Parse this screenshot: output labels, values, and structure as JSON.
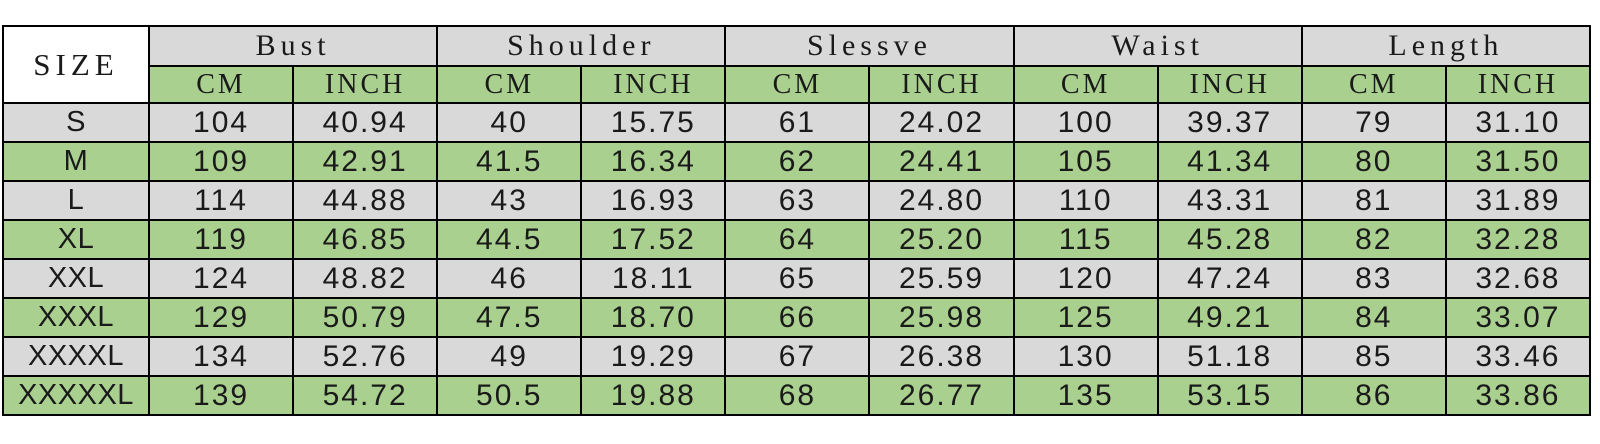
{
  "colors": {
    "header_gray": "#d9d9d9",
    "row_gray": "#d9d9d9",
    "row_green": "#a9d08e",
    "size_cell_bg": "#ffffff",
    "border": "#000000"
  },
  "table": {
    "size_label": "SIZE",
    "groups": [
      "Bust",
      "Shoulder",
      "Slessve",
      "Waist",
      "Length"
    ],
    "unit_labels": [
      "CM",
      "INCH"
    ],
    "rows": [
      {
        "size": "S",
        "values": [
          "104",
          "40.94",
          "40",
          "15.75",
          "61",
          "24.02",
          "100",
          "39.37",
          "79",
          "31.10"
        ]
      },
      {
        "size": "M",
        "values": [
          "109",
          "42.91",
          "41.5",
          "16.34",
          "62",
          "24.41",
          "105",
          "41.34",
          "80",
          "31.50"
        ]
      },
      {
        "size": "L",
        "values": [
          "114",
          "44.88",
          "43",
          "16.93",
          "63",
          "24.80",
          "110",
          "43.31",
          "81",
          "31.89"
        ]
      },
      {
        "size": "XL",
        "values": [
          "119",
          "46.85",
          "44.5",
          "17.52",
          "64",
          "25.20",
          "115",
          "45.28",
          "82",
          "32.28"
        ]
      },
      {
        "size": "XXL",
        "values": [
          "124",
          "48.82",
          "46",
          "18.11",
          "65",
          "25.59",
          "120",
          "47.24",
          "83",
          "32.68"
        ]
      },
      {
        "size": "XXXL",
        "values": [
          "129",
          "50.79",
          "47.5",
          "18.70",
          "66",
          "25.98",
          "125",
          "49.21",
          "84",
          "33.07"
        ]
      },
      {
        "size": "XXXXL",
        "values": [
          "134",
          "52.76",
          "49",
          "19.29",
          "67",
          "26.38",
          "130",
          "51.18",
          "85",
          "33.46"
        ]
      },
      {
        "size": "XXXXXL",
        "values": [
          "139",
          "54.72",
          "50.5",
          "19.88",
          "68",
          "26.77",
          "135",
          "53.15",
          "86",
          "33.86"
        ]
      }
    ]
  },
  "chart_data": {
    "type": "table",
    "title": "Garment size chart",
    "columns": [
      "SIZE",
      "Bust CM",
      "Bust INCH",
      "Shoulder CM",
      "Shoulder INCH",
      "Slessve CM",
      "Slessve INCH",
      "Waist CM",
      "Waist INCH",
      "Length CM",
      "Length INCH"
    ],
    "rows": [
      [
        "S",
        104,
        40.94,
        40,
        15.75,
        61,
        24.02,
        100,
        39.37,
        79,
        31.1
      ],
      [
        "M",
        109,
        42.91,
        41.5,
        16.34,
        62,
        24.41,
        105,
        41.34,
        80,
        31.5
      ],
      [
        "L",
        114,
        44.88,
        43,
        16.93,
        63,
        24.8,
        110,
        43.31,
        81,
        31.89
      ],
      [
        "XL",
        119,
        46.85,
        44.5,
        17.52,
        64,
        25.2,
        115,
        45.28,
        82,
        32.28
      ],
      [
        "XXL",
        124,
        48.82,
        46,
        18.11,
        65,
        25.59,
        120,
        47.24,
        83,
        32.68
      ],
      [
        "XXXL",
        129,
        50.79,
        47.5,
        18.7,
        66,
        25.98,
        125,
        49.21,
        84,
        33.07
      ],
      [
        "XXXXL",
        134,
        52.76,
        49,
        19.29,
        67,
        26.38,
        130,
        51.18,
        85,
        33.46
      ],
      [
        "XXXXXL",
        139,
        54.72,
        50.5,
        19.88,
        68,
        26.77,
        135,
        53.15,
        86,
        33.86
      ]
    ],
    "layout": {
      "row_striping": [
        "gray",
        "green"
      ],
      "header_row1_bg": "#d9d9d9",
      "header_row2_bg": "#a9d08e",
      "grid": true
    }
  }
}
